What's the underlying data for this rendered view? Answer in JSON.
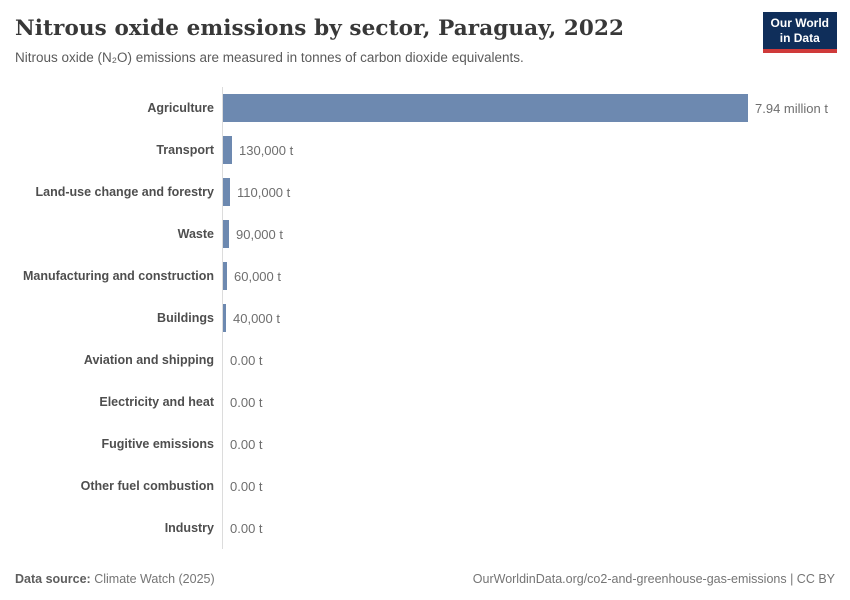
{
  "header": {
    "title": "Nitrous oxide emissions by sector, Paraguay, 2022",
    "subtitle": "Nitrous oxide (N₂O) emissions are measured in tonnes of carbon dioxide equivalents.",
    "logo": {
      "line1": "Our World",
      "line2": "in Data"
    }
  },
  "chart_data": {
    "type": "bar",
    "orientation": "horizontal",
    "title": "Nitrous oxide emissions by sector, Paraguay, 2022",
    "unit": "tonnes of carbon dioxide equivalents",
    "categories": [
      "Agriculture",
      "Transport",
      "Land-use change and forestry",
      "Waste",
      "Manufacturing and construction",
      "Buildings",
      "Aviation and shipping",
      "Electricity and heat",
      "Fugitive emissions",
      "Other fuel combustion",
      "Industry"
    ],
    "values": [
      7940000,
      130000,
      110000,
      90000,
      60000,
      40000,
      0,
      0,
      0,
      0,
      0
    ],
    "value_labels": [
      "7.94 million t",
      "130,000 t",
      "110,000 t",
      "90,000 t",
      "60,000 t",
      "40,000 t",
      "0.00 t",
      "0.00 t",
      "0.00 t",
      "0.00 t",
      "0.00 t"
    ],
    "xlim": [
      0,
      7940000
    ],
    "grid": false,
    "legend": "none",
    "bar_color": "#6d89b0",
    "axis_color": "#dcdcdc"
  },
  "footer": {
    "source_label": "Data source:",
    "source_value": "Climate Watch (2025)",
    "link": "OurWorldinData.org/co2-and-greenhouse-gas-emissions | CC BY"
  },
  "colors": {
    "bar": "#6d89b0",
    "logo_navy": "#0f2e5a",
    "logo_red": "#cf3a3a",
    "title_text": "#383838",
    "subtitle_text": "#5b5b5b",
    "category_label": "#4e4e4e",
    "value_label": "#6e6e6e",
    "axis_line": "#dcdcdc"
  }
}
